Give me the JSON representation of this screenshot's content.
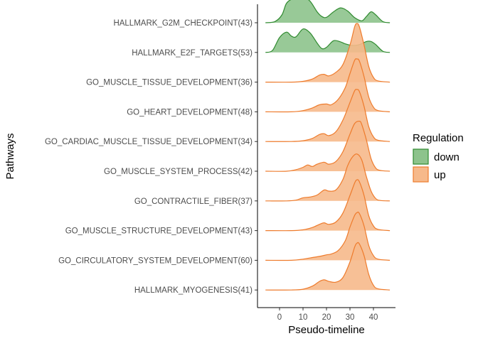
{
  "chart_data": {
    "type": "ridgeline",
    "xlabel": "Pseudo-timeline",
    "ylabel": "Pathways",
    "x_ticks": [
      0,
      10,
      20,
      30,
      40
    ],
    "xlim": [
      -9,
      49
    ],
    "legend": {
      "title": "Regulation",
      "position": "right",
      "entries": [
        {
          "name": "down",
          "fill": "#8dc38c",
          "stroke": "#2f8a2f"
        },
        {
          "name": "up",
          "fill": "#f6b98b",
          "stroke": "#ee7b2c"
        }
      ]
    },
    "pathways": [
      {
        "label": "HALLMARK_G2M_CHECKPOINT(43)",
        "regulation": "down",
        "density": [
          [
            -6,
            0
          ],
          [
            -2,
            0.03
          ],
          [
            1,
            0.2
          ],
          [
            3,
            0.5
          ],
          [
            6,
            0.62
          ],
          [
            10,
            0.66
          ],
          [
            13,
            0.55
          ],
          [
            16,
            0.28
          ],
          [
            18,
            0.16
          ],
          [
            20,
            0.14
          ],
          [
            23,
            0.28
          ],
          [
            26,
            0.38
          ],
          [
            29,
            0.3
          ],
          [
            32,
            0.13
          ],
          [
            35,
            0.05
          ],
          [
            37,
            0.16
          ],
          [
            39,
            0.28
          ],
          [
            41,
            0.2
          ],
          [
            44,
            0.03
          ],
          [
            47,
            0
          ]
        ]
      },
      {
        "label": "HALLMARK_E2F_TARGETS(53)",
        "regulation": "down",
        "density": [
          [
            -6,
            0
          ],
          [
            -3,
            0.05
          ],
          [
            0,
            0.38
          ],
          [
            3,
            0.52
          ],
          [
            5,
            0.42
          ],
          [
            7,
            0.4
          ],
          [
            10,
            0.6
          ],
          [
            13,
            0.5
          ],
          [
            16,
            0.24
          ],
          [
            18,
            0.1
          ],
          [
            20,
            0.13
          ],
          [
            23,
            0.3
          ],
          [
            26,
            0.27
          ],
          [
            28,
            0.22
          ],
          [
            31,
            0.18
          ],
          [
            34,
            0.2
          ],
          [
            37,
            0.28
          ],
          [
            39,
            0.28
          ],
          [
            41,
            0.2
          ],
          [
            44,
            0.03
          ],
          [
            47,
            0
          ]
        ]
      },
      {
        "label": "GO_MUSCLE_TISSUE_DEVELOPMENT(36)",
        "regulation": "up",
        "density": [
          [
            -6,
            0
          ],
          [
            5,
            0
          ],
          [
            10,
            0.02
          ],
          [
            14,
            0.08
          ],
          [
            17,
            0.18
          ],
          [
            19,
            0.2
          ],
          [
            21,
            0.16
          ],
          [
            24,
            0.25
          ],
          [
            27,
            0.45
          ],
          [
            30,
            0.95
          ],
          [
            32,
            1.42
          ],
          [
            33,
            1.5
          ],
          [
            34,
            1.42
          ],
          [
            36,
            0.95
          ],
          [
            38,
            0.4
          ],
          [
            40,
            0.12
          ],
          [
            42,
            0.03
          ],
          [
            47,
            0
          ]
        ]
      },
      {
        "label": "GO_HEART_DEVELOPMENT(48)",
        "regulation": "up",
        "density": [
          [
            -6,
            0
          ],
          [
            5,
            0
          ],
          [
            10,
            0.03
          ],
          [
            14,
            0.1
          ],
          [
            17,
            0.18
          ],
          [
            20,
            0.2
          ],
          [
            22,
            0.18
          ],
          [
            25,
            0.32
          ],
          [
            28,
            0.62
          ],
          [
            30,
            0.98
          ],
          [
            32,
            1.32
          ],
          [
            33,
            1.35
          ],
          [
            34,
            1.3
          ],
          [
            36,
            0.9
          ],
          [
            38,
            0.38
          ],
          [
            40,
            0.12
          ],
          [
            42,
            0.03
          ],
          [
            47,
            0
          ]
        ]
      },
      {
        "label": "GO_CARDIAC_MUSCLE_TISSUE_DEVELOPMENT(34)",
        "regulation": "up",
        "density": [
          [
            -6,
            0
          ],
          [
            5,
            0
          ],
          [
            10,
            0.02
          ],
          [
            14,
            0.08
          ],
          [
            17,
            0.18
          ],
          [
            19,
            0.2
          ],
          [
            21,
            0.15
          ],
          [
            24,
            0.25
          ],
          [
            27,
            0.55
          ],
          [
            30,
            1.0
          ],
          [
            32,
            1.3
          ],
          [
            33,
            1.33
          ],
          [
            34,
            1.28
          ],
          [
            36,
            0.9
          ],
          [
            38,
            0.38
          ],
          [
            40,
            0.12
          ],
          [
            42,
            0.03
          ],
          [
            47,
            0
          ]
        ]
      },
      {
        "label": "GO_MUSCLE_SYSTEM_PROCESS(42)",
        "regulation": "up",
        "density": [
          [
            -6,
            0
          ],
          [
            3,
            0
          ],
          [
            7,
            0.04
          ],
          [
            10,
            0.1
          ],
          [
            12,
            0.16
          ],
          [
            14,
            0.12
          ],
          [
            16,
            0.18
          ],
          [
            19,
            0.23
          ],
          [
            21,
            0.18
          ],
          [
            24,
            0.25
          ],
          [
            27,
            0.5
          ],
          [
            30,
            0.95
          ],
          [
            32,
            1.22
          ],
          [
            34,
            1.28
          ],
          [
            35,
            1.2
          ],
          [
            37,
            0.8
          ],
          [
            39,
            0.32
          ],
          [
            41,
            0.08
          ],
          [
            43,
            0.02
          ],
          [
            47,
            0
          ]
        ]
      },
      {
        "label": "GO_CONTRACTILE_FIBER(37)",
        "regulation": "up",
        "density": [
          [
            -6,
            0
          ],
          [
            3,
            0
          ],
          [
            7,
            0.02
          ],
          [
            10,
            0.08
          ],
          [
            13,
            0.1
          ],
          [
            16,
            0.15
          ],
          [
            19,
            0.28
          ],
          [
            21,
            0.25
          ],
          [
            24,
            0.28
          ],
          [
            27,
            0.55
          ],
          [
            29,
            0.9
          ],
          [
            31,
            1.12
          ],
          [
            33,
            1.2
          ],
          [
            35,
            1.05
          ],
          [
            37,
            0.62
          ],
          [
            39,
            0.25
          ],
          [
            41,
            0.06
          ],
          [
            43,
            0.01
          ],
          [
            47,
            0
          ]
        ]
      },
      {
        "label": "GO_MUSCLE_STRUCTURE_DEVELOPMENT(43)",
        "regulation": "up",
        "density": [
          [
            -6,
            0
          ],
          [
            5,
            0
          ],
          [
            10,
            0.02
          ],
          [
            14,
            0.08
          ],
          [
            17,
            0.16
          ],
          [
            19,
            0.2
          ],
          [
            21,
            0.16
          ],
          [
            24,
            0.22
          ],
          [
            27,
            0.45
          ],
          [
            30,
            0.9
          ],
          [
            32,
            1.22
          ],
          [
            33,
            1.3
          ],
          [
            34,
            1.25
          ],
          [
            36,
            0.9
          ],
          [
            38,
            0.38
          ],
          [
            40,
            0.12
          ],
          [
            42,
            0.03
          ],
          [
            47,
            0
          ]
        ]
      },
      {
        "label": "GO_CIRCULATORY_SYSTEM_DEVELOPMENT(60)",
        "regulation": "up",
        "density": [
          [
            -6,
            0
          ],
          [
            5,
            0
          ],
          [
            10,
            0.03
          ],
          [
            14,
            0.07
          ],
          [
            17,
            0.1
          ],
          [
            20,
            0.14
          ],
          [
            22,
            0.16
          ],
          [
            25,
            0.25
          ],
          [
            28,
            0.5
          ],
          [
            30,
            0.85
          ],
          [
            32,
            1.15
          ],
          [
            33,
            1.22
          ],
          [
            34,
            1.2
          ],
          [
            36,
            0.88
          ],
          [
            38,
            0.38
          ],
          [
            40,
            0.12
          ],
          [
            42,
            0.03
          ],
          [
            47,
            0
          ]
        ]
      },
      {
        "label": "HALLMARK_MYOGENESIS(41)",
        "regulation": "up",
        "density": [
          [
            -6,
            0
          ],
          [
            5,
            0
          ],
          [
            10,
            0.02
          ],
          [
            14,
            0.1
          ],
          [
            17,
            0.22
          ],
          [
            19,
            0.26
          ],
          [
            21,
            0.22
          ],
          [
            24,
            0.2
          ],
          [
            27,
            0.32
          ],
          [
            30,
            0.72
          ],
          [
            32,
            1.1
          ],
          [
            33,
            1.2
          ],
          [
            34,
            1.18
          ],
          [
            36,
            0.88
          ],
          [
            38,
            0.4
          ],
          [
            40,
            0.12
          ],
          [
            42,
            0.03
          ],
          [
            47,
            0
          ]
        ]
      }
    ]
  }
}
